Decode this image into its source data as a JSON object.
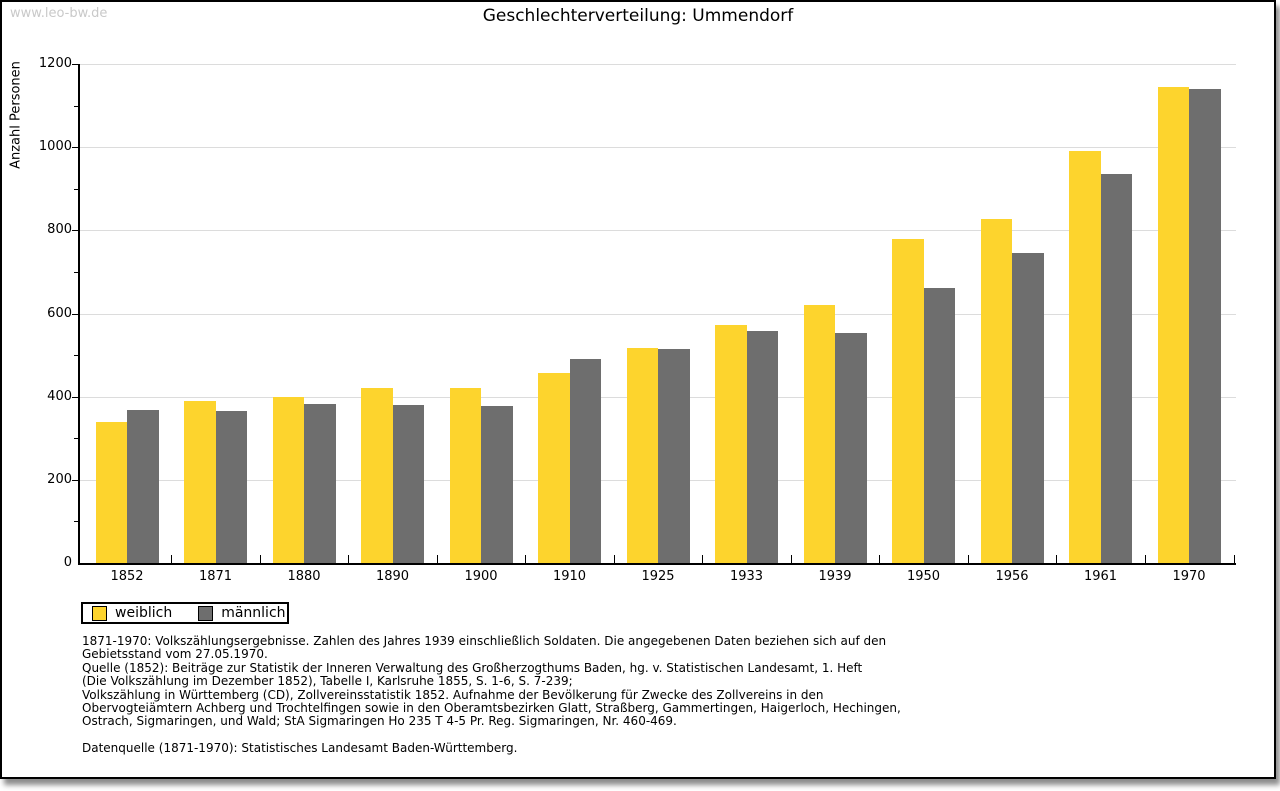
{
  "watermark": "www.leo-bw.de",
  "title": "Geschlechterverteilung: Ummendorf",
  "chart_data": {
    "type": "bar",
    "title": "Geschlechterverteilung: Ummendorf",
    "xlabel": "",
    "ylabel": "Anzahl Personen",
    "ylim": [
      0,
      1200
    ],
    "ytick_step": 200,
    "yminor_step": 100,
    "grid": true,
    "legend_position": "bottom-left",
    "categories": [
      "1852",
      "1871",
      "1880",
      "1890",
      "1900",
      "1910",
      "1925",
      "1933",
      "1939",
      "1950",
      "1956",
      "1961",
      "1970"
    ],
    "series": [
      {
        "name": "weiblich",
        "color": "#FDD42D",
        "values": [
          340,
          390,
          400,
          420,
          420,
          456,
          517,
          573,
          620,
          780,
          827,
          990,
          1145
        ]
      },
      {
        "name": "männlich",
        "color": "#6E6E6E",
        "values": [
          368,
          365,
          383,
          380,
          377,
          490,
          514,
          558,
          554,
          661,
          746,
          935,
          1140
        ]
      }
    ]
  },
  "legend": {
    "items": [
      {
        "label": "weiblich",
        "color": "#FDD42D"
      },
      {
        "label": "männlich",
        "color": "#6E6E6E"
      }
    ]
  },
  "notes": {
    "lines": [
      "1871-1970: Volkszählungsergebnisse. Zahlen des Jahres 1939 einschließlich Soldaten. Die angegebenen Daten beziehen sich auf den",
      "Gebietsstand vom 27.05.1970.",
      "Quelle (1852): Beiträge zur Statistik der Inneren Verwaltung des Großherzogthums Baden, hg. v. Statistischen Landesamt, 1. Heft",
      "(Die Volkszählung im Dezember 1852), Tabelle I, Karlsruhe 1855, S. 1-6, S. 7-239;",
      "Volkszählung in Württemberg (CD), Zollvereinsstatistik 1852. Aufnahme der Bevölkerung für Zwecke des Zollvereins in den",
      "Obervogteiämtern Achberg und Trochtelfingen sowie in den Oberamtsbezirken Glatt, Straßberg, Gammertingen, Haigerloch, Hechingen,",
      "Ostrach, Sigmaringen, und Wald; StA Sigmaringen Ho 235 T 4-5 Pr. Reg. Sigmaringen, Nr. 460-469."
    ],
    "source": "Datenquelle (1871-1970): Statistisches Landesamt Baden-Württemberg."
  }
}
